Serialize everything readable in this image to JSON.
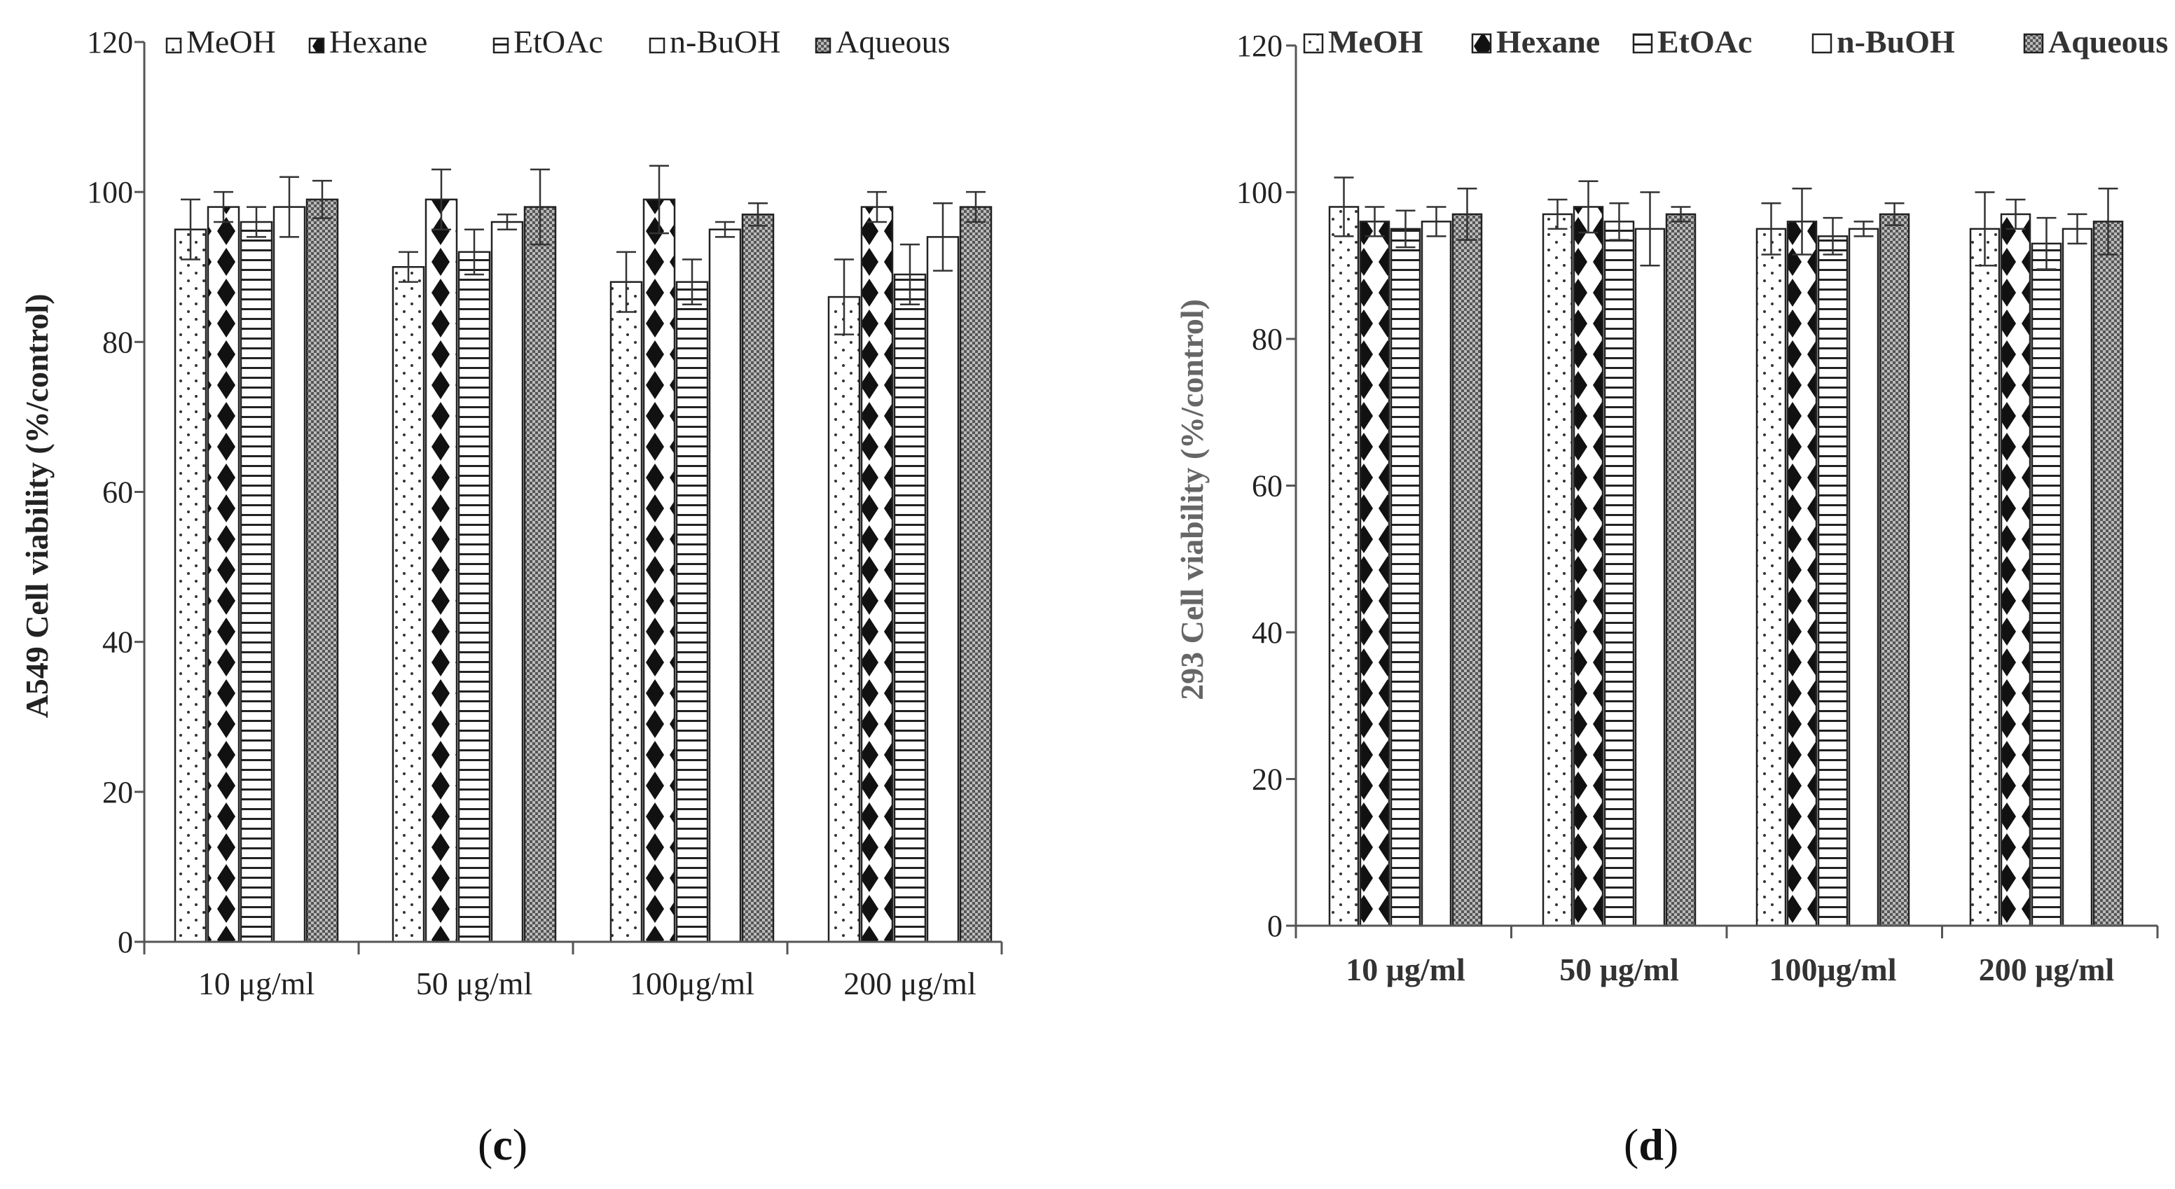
{
  "chart_data": [
    {
      "type": "bar",
      "panel_label_open": "(",
      "panel_label_letter": "c",
      "panel_label_close": ")",
      "title": "",
      "xlabel": "",
      "ylabel": "A549 Cell viability (%/control)",
      "ylim": [
        0,
        120
      ],
      "yticks": [
        "0",
        "20",
        "40",
        "60",
        "80",
        "100",
        "120"
      ],
      "grid": false,
      "legend_position": "top",
      "categories": [
        "10 μg/ml",
        "50 μg/ml",
        "100μg/ml",
        "200 μg/ml"
      ],
      "series": [
        {
          "name": "MeOH",
          "pattern": "dots",
          "values": [
            95,
            90,
            88,
            86
          ],
          "errors": [
            4,
            2,
            4,
            5
          ]
        },
        {
          "name": "Hexane",
          "pattern": "diamonds",
          "values": [
            98,
            99,
            99,
            98
          ],
          "errors": [
            2,
            4,
            4.5,
            2
          ]
        },
        {
          "name": "EtOAc",
          "pattern": "hlines",
          "values": [
            96,
            92,
            88,
            89
          ],
          "errors": [
            2,
            3,
            3,
            4
          ]
        },
        {
          "name": "n-BuOH",
          "pattern": "none",
          "values": [
            98,
            96,
            95,
            94
          ],
          "errors": [
            4,
            1,
            1,
            4.5
          ]
        },
        {
          "name": "Aqueous",
          "pattern": "checker",
          "values": [
            99,
            98,
            97,
            98
          ],
          "errors": [
            2.5,
            5,
            1.5,
            2
          ]
        }
      ]
    },
    {
      "type": "bar",
      "panel_label_open": "(",
      "panel_label_letter": "d",
      "panel_label_close": ")",
      "title": "",
      "xlabel": "",
      "ylabel": "293 Cell viability (%/control)",
      "ylim": [
        0,
        120
      ],
      "yticks": [
        "0",
        "20",
        "40",
        "60",
        "80",
        "100",
        "120"
      ],
      "grid": false,
      "legend_position": "top",
      "categories": [
        "10 μg/ml",
        "50 μg/ml",
        "100μg/ml",
        "200 μg/ml"
      ],
      "series": [
        {
          "name": "MeOH",
          "pattern": "dots",
          "values": [
            98,
            97,
            95,
            95
          ],
          "errors": [
            4,
            2,
            3.5,
            5
          ]
        },
        {
          "name": "Hexane",
          "pattern": "diamonds",
          "values": [
            96,
            98,
            96,
            97
          ],
          "errors": [
            2,
            3.5,
            4.5,
            2
          ]
        },
        {
          "name": "EtOAc",
          "pattern": "hlines",
          "values": [
            95,
            96,
            94,
            93
          ],
          "errors": [
            2.5,
            2.5,
            2.5,
            3.5
          ]
        },
        {
          "name": "n-BuOH",
          "pattern": "none",
          "values": [
            96,
            95,
            95,
            95
          ],
          "errors": [
            2,
            5,
            1,
            2
          ]
        },
        {
          "name": "Aqueous",
          "pattern": "checker",
          "values": [
            97,
            97,
            97,
            96
          ],
          "errors": [
            3.5,
            1,
            1.5,
            4.5
          ]
        }
      ]
    }
  ]
}
